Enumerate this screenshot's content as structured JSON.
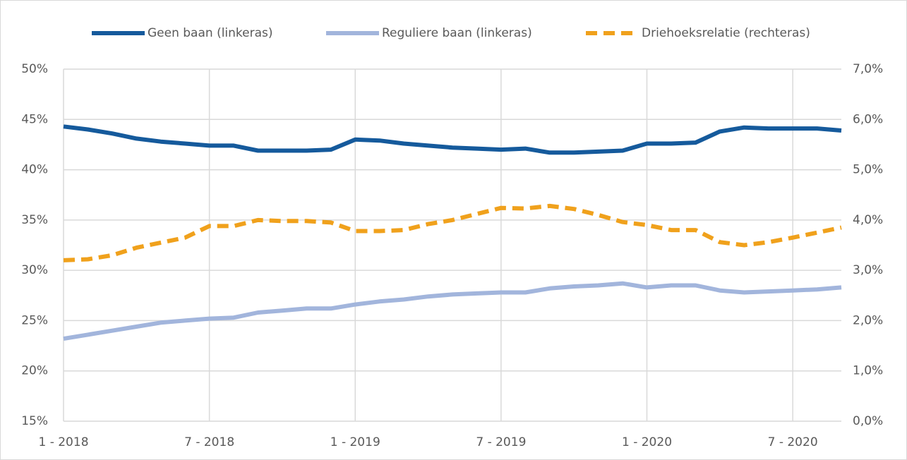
{
  "chart_data": {
    "type": "line",
    "categories": [
      "1 - 2018",
      null,
      null,
      null,
      null,
      null,
      "7 - 2018",
      null,
      null,
      null,
      null,
      null,
      "1 - 2019",
      null,
      null,
      null,
      null,
      null,
      "7 - 2019",
      null,
      null,
      null,
      null,
      null,
      "1 - 2020",
      null,
      null,
      null,
      null,
      null,
      "7 - 2020",
      null,
      null
    ],
    "series": [
      {
        "name": "Geen baan (linkeras)",
        "color": "#155a9c",
        "axis": "y",
        "dashed": false,
        "values": [
          44.3,
          44.0,
          43.6,
          43.1,
          42.8,
          42.6,
          42.4,
          42.4,
          41.9,
          41.9,
          41.9,
          42.0,
          43.0,
          42.9,
          42.6,
          42.4,
          42.2,
          42.1,
          42.0,
          42.1,
          41.7,
          41.7,
          41.8,
          41.9,
          42.6,
          42.6,
          42.7,
          43.8,
          44.2,
          44.1,
          44.1,
          44.1,
          43.9
        ]
      },
      {
        "name": "Reguliere baan (linkeras)",
        "color": "#a2b5dc",
        "axis": "y",
        "dashed": false,
        "values": [
          23.2,
          23.6,
          24.0,
          24.4,
          24.8,
          25.0,
          25.2,
          25.3,
          25.8,
          26.0,
          26.2,
          26.2,
          26.6,
          26.9,
          27.1,
          27.4,
          27.6,
          27.7,
          27.8,
          27.8,
          28.2,
          28.4,
          28.5,
          28.7,
          28.3,
          28.5,
          28.5,
          28.0,
          27.8,
          27.9,
          28.0,
          28.1,
          28.3
        ]
      },
      {
        "name": "Driehoeksrelatie (rechteras)",
        "color": "#f0a11c",
        "axis": "y2",
        "dashed": true,
        "values": [
          3.2,
          3.22,
          3.3,
          3.45,
          3.55,
          3.65,
          3.88,
          3.88,
          4.0,
          3.98,
          3.98,
          3.95,
          3.78,
          3.78,
          3.8,
          3.92,
          4.0,
          4.12,
          4.24,
          4.23,
          4.28,
          4.22,
          4.1,
          3.96,
          3.9,
          3.8,
          3.8,
          3.56,
          3.5,
          3.56,
          3.65,
          3.75,
          3.85
        ]
      }
    ],
    "ylim": [
      15,
      50
    ],
    "yticks": [
      {
        "value": 15,
        "label": "15%"
      },
      {
        "value": 20,
        "label": "20%"
      },
      {
        "value": 25,
        "label": "25%"
      },
      {
        "value": 30,
        "label": "30%"
      },
      {
        "value": 35,
        "label": "35%"
      },
      {
        "value": 40,
        "label": "40%"
      },
      {
        "value": 45,
        "label": "45%"
      },
      {
        "value": 50,
        "label": "50%"
      }
    ],
    "y2lim": [
      0,
      7
    ],
    "y2ticks": [
      {
        "value": 0,
        "label": "0,0%"
      },
      {
        "value": 1,
        "label": "1,0%"
      },
      {
        "value": 2,
        "label": "2,0%"
      },
      {
        "value": 3,
        "label": "3,0%"
      },
      {
        "value": 4,
        "label": "4,0%"
      },
      {
        "value": 5,
        "label": "5,0%"
      },
      {
        "value": 6,
        "label": "6,0%"
      },
      {
        "value": 7,
        "label": "7,0%"
      }
    ],
    "grid": true,
    "legend": "top"
  }
}
